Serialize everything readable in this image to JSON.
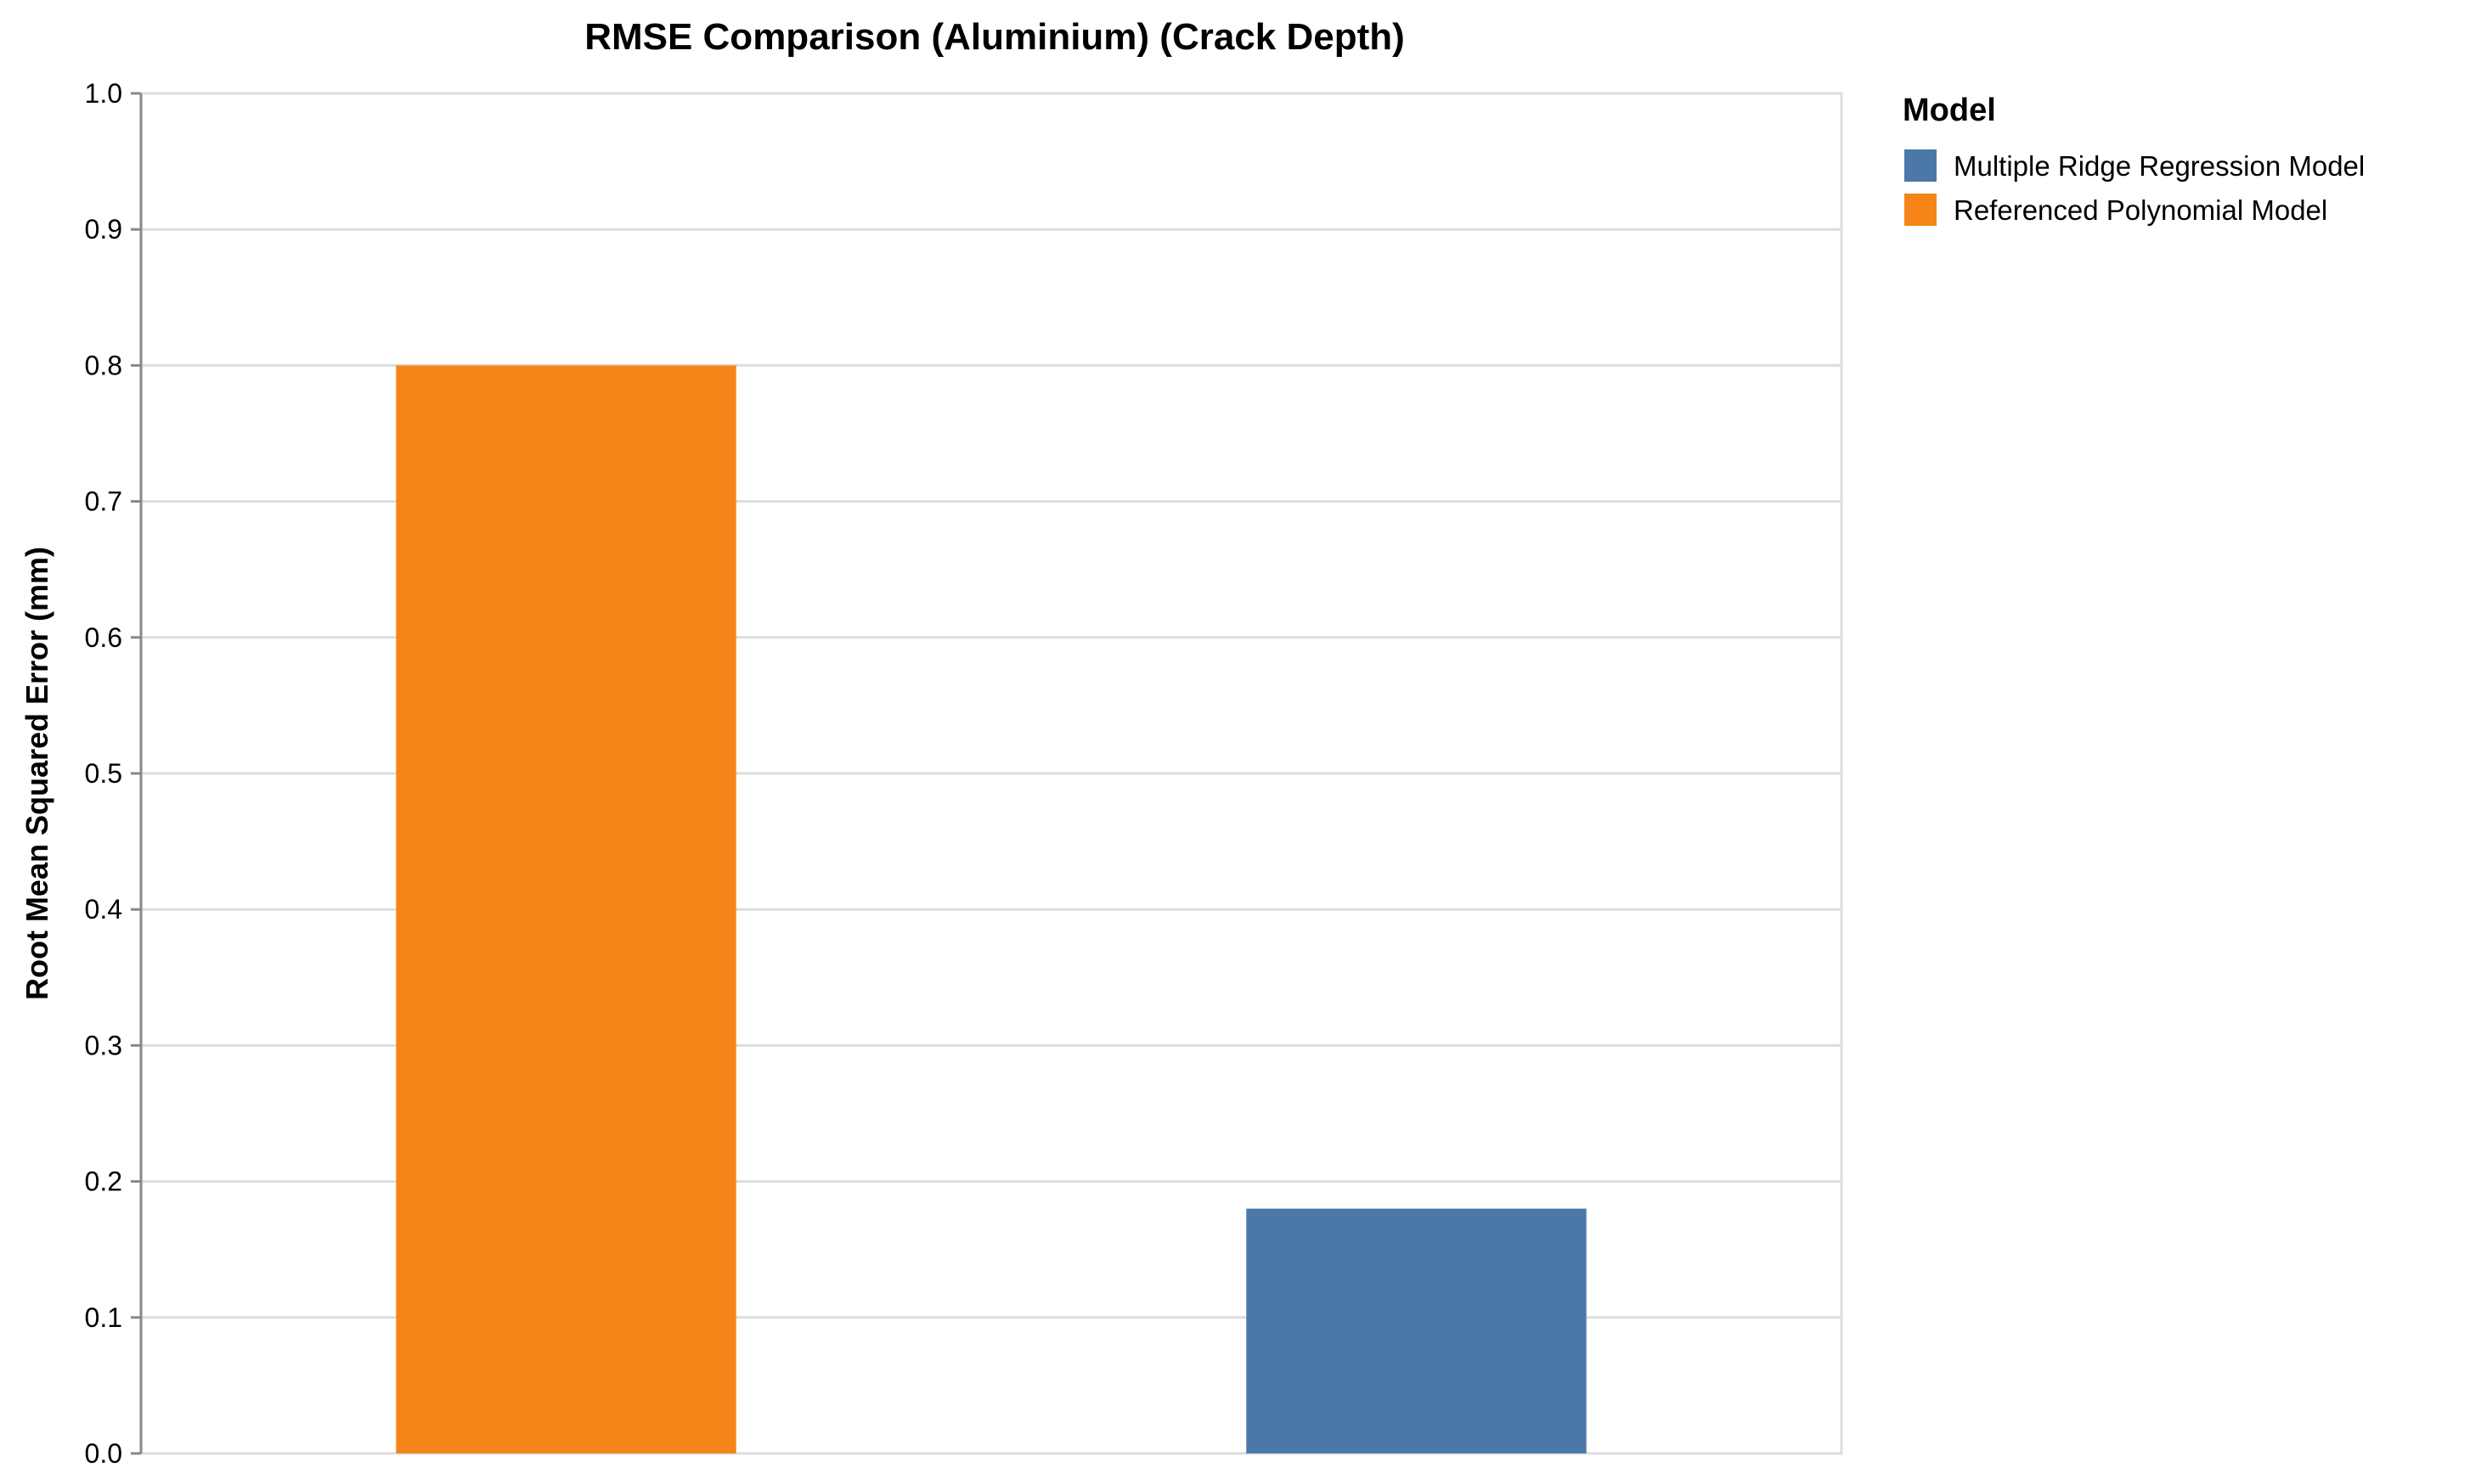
{
  "chart_data": {
    "type": "bar",
    "title": "RMSE Comparison (Aluminium) (Crack Depth)",
    "xlabel": "",
    "ylabel": "Root Mean Squared Error (mm)",
    "ylim": [
      0,
      1.0
    ],
    "yticks": [
      "0.0",
      "0.1",
      "0.2",
      "0.3",
      "0.4",
      "0.5",
      "0.6",
      "0.7",
      "0.8",
      "0.9",
      "1.0"
    ],
    "grid": true,
    "legend": {
      "title": "Model",
      "placement": "right",
      "entries": [
        {
          "label": "Multiple Ridge Regression Model",
          "color": "#4c78a8"
        },
        {
          "label": "Referenced Polynomial Model",
          "color": "#f58518"
        }
      ]
    },
    "categories": [
      "Referenced Polynomial Model",
      "Multiple Ridge Regression Model"
    ],
    "values": [
      0.8,
      0.18
    ],
    "colors": [
      "#f58518",
      "#4c78a8"
    ]
  }
}
